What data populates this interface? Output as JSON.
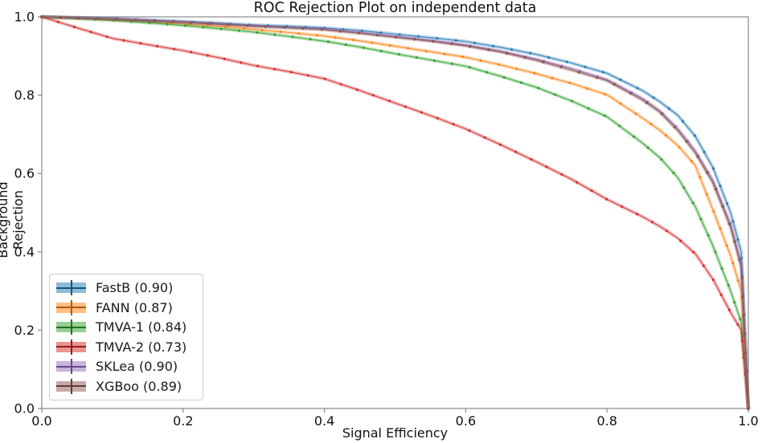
{
  "window": {
    "background": "#ffffff",
    "spine_color": "#888888"
  },
  "chart_data": {
    "type": "line",
    "title": "ROC Rejection Plot on independent data",
    "xlabel": "Signal Efficiency",
    "ylabel": "Background Rejection",
    "xlim": [
      0.0,
      1.0
    ],
    "ylim": [
      0.0,
      1.0
    ],
    "x_ticks": [
      "0.0",
      "0.2",
      "0.4",
      "0.6",
      "0.8",
      "1.0"
    ],
    "y_ticks": [
      "0.0",
      "0.2",
      "0.4",
      "0.6",
      "0.8",
      "1.0"
    ],
    "grid": false,
    "legend_position": "lower left",
    "marker_style": "small-dot",
    "error_band": true,
    "x": [
      0,
      0.05,
      0.1,
      0.15,
      0.2,
      0.25,
      0.3,
      0.35,
      0.4,
      0.45,
      0.5,
      0.55,
      0.6,
      0.65,
      0.7,
      0.75,
      0.8,
      0.85,
      0.875,
      0.9,
      0.925,
      0.95,
      0.975,
      0.99,
      1.0
    ],
    "series": [
      {
        "name": "FastB",
        "auc": "0.90",
        "label": "FastB (0.90)",
        "color": "#1f77b4",
        "dark": "#16567e",
        "y": [
          1.0,
          0.998,
          0.996,
          0.992,
          0.988,
          0.984,
          0.979,
          0.976,
          0.972,
          0.965,
          0.956,
          0.947,
          0.937,
          0.922,
          0.904,
          0.882,
          0.856,
          0.812,
          0.783,
          0.749,
          0.695,
          0.615,
          0.5,
          0.4,
          0.0
        ]
      },
      {
        "name": "FANN",
        "auc": "0.87",
        "label": "FANN (0.87)",
        "color": "#ff7f0e",
        "dark": "#b35909",
        "y": [
          1.0,
          0.997,
          0.993,
          0.988,
          0.982,
          0.976,
          0.968,
          0.96,
          0.951,
          0.939,
          0.925,
          0.911,
          0.897,
          0.877,
          0.855,
          0.83,
          0.801,
          0.742,
          0.71,
          0.672,
          0.62,
          0.507,
          0.39,
          0.3,
          0.0
        ]
      },
      {
        "name": "TMVA-1",
        "auc": "0.84",
        "label": "TMVA-1 (0.84)",
        "color": "#2ca02c",
        "dark": "#1f701f",
        "y": [
          1.0,
          0.996,
          0.991,
          0.985,
          0.978,
          0.97,
          0.961,
          0.95,
          0.938,
          0.923,
          0.906,
          0.89,
          0.874,
          0.848,
          0.82,
          0.785,
          0.745,
          0.678,
          0.64,
          0.59,
          0.515,
          0.415,
          0.3,
          0.22,
          0.0
        ]
      },
      {
        "name": "TMVA-2",
        "auc": "0.73",
        "label": "TMVA-2 (0.73)",
        "color": "#d62728",
        "dark": "#961b1c",
        "y": [
          1.0,
          0.972,
          0.945,
          0.929,
          0.914,
          0.896,
          0.876,
          0.86,
          0.842,
          0.812,
          0.78,
          0.748,
          0.714,
          0.673,
          0.63,
          0.585,
          0.534,
          0.49,
          0.465,
          0.435,
          0.395,
          0.33,
          0.245,
          0.2,
          0.0
        ]
      },
      {
        "name": "SKLea",
        "auc": "0.90",
        "label": "SKLea (0.90)",
        "color": "#9467bd",
        "dark": "#684884",
        "y": [
          1.0,
          0.998,
          0.995,
          0.991,
          0.987,
          0.982,
          0.977,
          0.973,
          0.969,
          0.96,
          0.95,
          0.94,
          0.928,
          0.912,
          0.892,
          0.868,
          0.84,
          0.792,
          0.76,
          0.715,
          0.658,
          0.582,
          0.47,
          0.37,
          0.0
        ]
      },
      {
        "name": "XGBoo",
        "auc": "0.89",
        "label": "XGBoo (0.89)",
        "color": "#8c564b",
        "dark": "#623c34",
        "y": [
          1.0,
          0.997,
          0.994,
          0.99,
          0.986,
          0.981,
          0.976,
          0.972,
          0.967,
          0.958,
          0.948,
          0.938,
          0.926,
          0.91,
          0.889,
          0.864,
          0.837,
          0.788,
          0.756,
          0.71,
          0.652,
          0.576,
          0.462,
          0.36,
          0.0
        ]
      }
    ]
  }
}
